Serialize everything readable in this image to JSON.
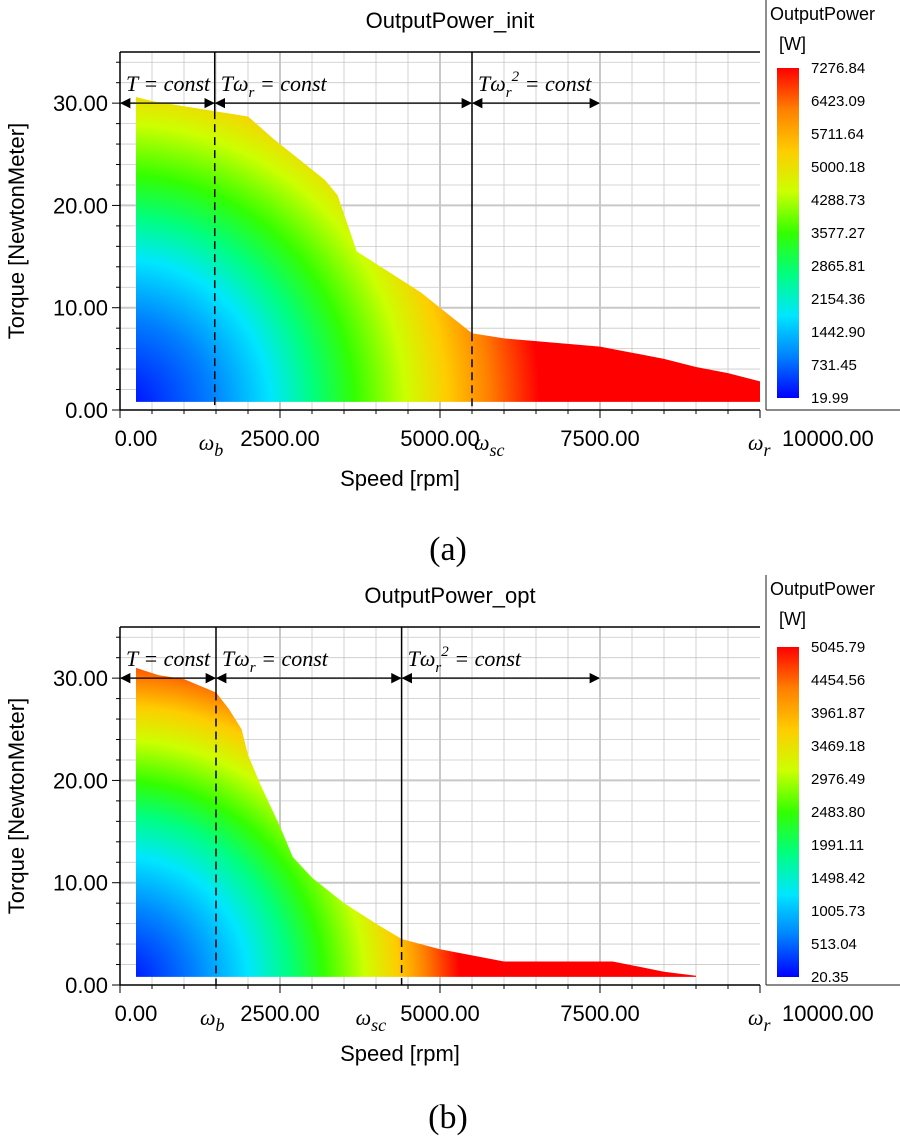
{
  "colors": {
    "map": [
      "#0000ff",
      "#0080ff",
      "#00e6ff",
      "#00ff80",
      "#33ff00",
      "#ccff00",
      "#ffcc00",
      "#ff7f00",
      "#ff0000"
    ],
    "grid": "#c8c8c8",
    "frame": "#000000"
  },
  "chart_data": [
    {
      "type": "heatmap",
      "panel_label": "(a)",
      "title": "OutputPower_init",
      "xlabel": "Speed [rpm]",
      "ylabel": "Torque [NewtonMeter]",
      "xlim": [
        0,
        10000
      ],
      "ylim": [
        0,
        35
      ],
      "x_ticks": [
        {
          "value": 0,
          "label": "0.00"
        },
        {
          "value": 2500,
          "label": "2500.00"
        },
        {
          "value": 5000,
          "label": "5000.00"
        },
        {
          "value": 7500,
          "label": "7500.00"
        },
        {
          "value": 10000,
          "label": "10000.00"
        }
      ],
      "y_ticks": [
        {
          "value": 0,
          "label": "0.00"
        },
        {
          "value": 10,
          "label": "10.00"
        },
        {
          "value": 20,
          "label": "20.00"
        },
        {
          "value": 30,
          "label": "30.00"
        }
      ],
      "grid": true,
      "colorbar": {
        "title": "OutputPower",
        "unit": "[W]",
        "min": 19.99,
        "max": 7276.84,
        "labels": [
          "7276.84",
          "6423.09",
          "5711.64",
          "5000.18",
          "4288.73",
          "3577.27",
          "2865.81",
          "2154.36",
          "1442.90",
          "731.45",
          "19.99"
        ]
      },
      "boundary": {
        "speed": [
          250,
          500,
          1000,
          1500,
          2000,
          2400,
          2800,
          3200,
          3400,
          3700,
          4200,
          4700,
          5000,
          5500,
          6000,
          7500,
          8500,
          9000,
          9500,
          10000
        ],
        "torque": [
          30.6,
          30.2,
          29.7,
          29.2,
          28.7,
          26.5,
          24.5,
          22.5,
          21.0,
          15.5,
          13.5,
          11.5,
          10.0,
          7.5,
          7.0,
          6.2,
          5.0,
          4.2,
          3.6,
          2.8
        ],
        "min_speed": 250,
        "min_torque": 0.8
      },
      "markers": [
        {
          "speed": 1480,
          "symbol": "ω",
          "sub": "b",
          "sup": ""
        },
        {
          "speed": 5500,
          "symbol": "ω",
          "sub": "sc",
          "sup": ""
        },
        {
          "speed": 10000,
          "symbol": "ω",
          "sub": "r",
          "sup": ""
        }
      ],
      "regions": [
        {
          "text": "T = const",
          "from": 0,
          "to": 1480,
          "sub": "",
          "sup": ""
        },
        {
          "text": "Tω",
          "from": 1480,
          "to": 5500,
          "sub": "r",
          "sup": "",
          "tail": " = const"
        },
        {
          "text": "Tω",
          "from": 5500,
          "to": 7500,
          "sub": "r",
          "sup": "2",
          "tail": " = const"
        }
      ]
    },
    {
      "type": "heatmap",
      "panel_label": "(b)",
      "title": "OutputPower_opt",
      "xlabel": "Speed [rpm]",
      "ylabel": "Torque [NewtonMeter]",
      "xlim": [
        0,
        10000
      ],
      "ylim": [
        0,
        35
      ],
      "x_ticks": [
        {
          "value": 0,
          "label": "0.00"
        },
        {
          "value": 2500,
          "label": "2500.00"
        },
        {
          "value": 5000,
          "label": "5000.00"
        },
        {
          "value": 7500,
          "label": "7500.00"
        },
        {
          "value": 10000,
          "label": "10000.00"
        }
      ],
      "y_ticks": [
        {
          "value": 0,
          "label": "0.00"
        },
        {
          "value": 10,
          "label": "10.00"
        },
        {
          "value": 20,
          "label": "20.00"
        },
        {
          "value": 30,
          "label": "30.00"
        }
      ],
      "grid": true,
      "colorbar": {
        "title": "OutputPower",
        "unit": "[W]",
        "min": 20.35,
        "max": 5045.79,
        "labels": [
          "5045.79",
          "4454.56",
          "3961.87",
          "3469.18",
          "2976.49",
          "2483.80",
          "1991.11",
          "1498.42",
          "1005.73",
          "513.04",
          "20.35"
        ]
      },
      "boundary": {
        "speed": [
          250,
          600,
          1000,
          1500,
          1700,
          1900,
          2000,
          2200,
          2500,
          2700,
          3000,
          3500,
          4000,
          4400,
          5000,
          6000,
          7700,
          8500,
          9000,
          9000
        ],
        "torque": [
          31.0,
          30.3,
          29.9,
          28.6,
          27.0,
          25.0,
          22.5,
          19.5,
          15.5,
          12.5,
          10.5,
          8.0,
          6.0,
          4.5,
          3.5,
          2.3,
          2.3,
          1.3,
          0.9,
          0.8
        ],
        "min_speed": 250,
        "min_torque": 0.8
      },
      "markers": [
        {
          "speed": 1500,
          "symbol": "ω",
          "sub": "b",
          "sup": ""
        },
        {
          "speed": 4400,
          "symbol": "ω",
          "sub": "sc",
          "sup": ""
        },
        {
          "speed": 10000,
          "symbol": "ω",
          "sub": "r",
          "sup": ""
        }
      ],
      "regions": [
        {
          "text": "T = const",
          "from": 0,
          "to": 1500,
          "sub": "",
          "sup": ""
        },
        {
          "text": "Tω",
          "from": 1500,
          "to": 4400,
          "sub": "r",
          "sup": "",
          "tail": " = const"
        },
        {
          "text": "Tω",
          "from": 4400,
          "to": 7500,
          "sub": "r",
          "sup": "2",
          "tail": " = const"
        }
      ]
    }
  ]
}
